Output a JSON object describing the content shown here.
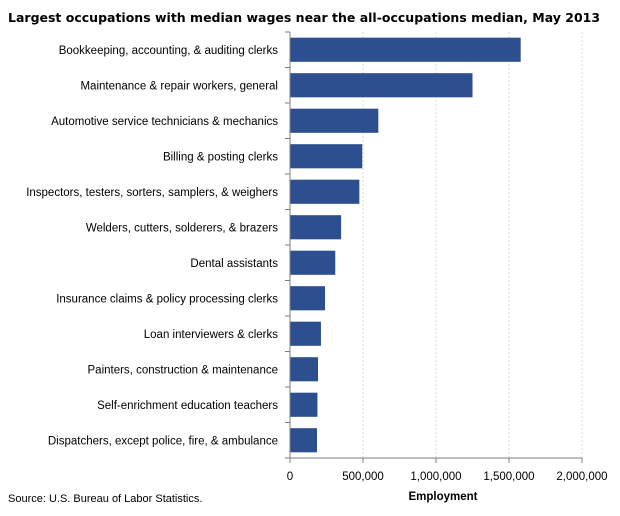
{
  "chart_data": {
    "type": "bar",
    "orientation": "horizontal",
    "title": "Largest occupations with median wages near the all-occupations median, May 2013",
    "xlabel": "Employment",
    "ylabel": "",
    "source": "Source: U.S. Bureau of Labor Statistics.",
    "categories": [
      "Bookkeeping, accounting, & auditing clerks",
      "Maintenance & repair workers, general",
      "Automotive service technicians & mechanics",
      "Billing & posting clerks",
      "Inspectors, testers, sorters, samplers, & weighers",
      "Welders, cutters, solderers, & brazers",
      "Dental assistants",
      "Insurance claims & policy processing clerks",
      "Loan interviewers & clerks",
      "Painters, construction & maintenance",
      "Self-enrichment education teachers",
      "Dispatchers, except police, fire, & ambulance"
    ],
    "values": [
      1580000,
      1250000,
      605000,
      495000,
      475000,
      350000,
      310000,
      240000,
      212000,
      192000,
      188000,
      185000
    ],
    "xlim": [
      0,
      2000000
    ],
    "xticks": [
      0,
      500000,
      1000000,
      1500000,
      2000000
    ],
    "xtick_labels": [
      "0",
      "500,000",
      "1,000,000",
      "1,500,000",
      "2,000,000"
    ],
    "grid": "vertical",
    "legend": "none",
    "bar_color": "#2e4f8f",
    "grid_color": "#d9d9d9",
    "axis_color": "#7f7f7f"
  }
}
